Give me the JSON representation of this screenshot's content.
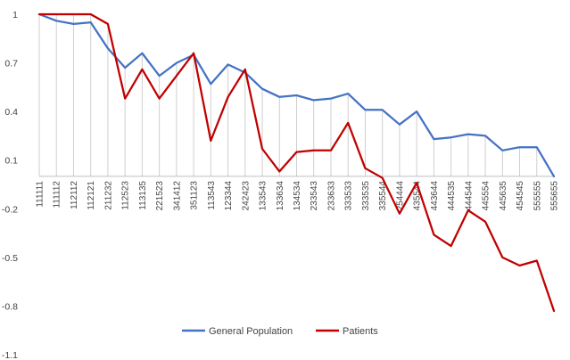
{
  "chart_data": {
    "type": "line",
    "categories": [
      "111111",
      "111112",
      "112112",
      "112121",
      "211232",
      "112523",
      "113135",
      "221523",
      "341412",
      "351123",
      "113543",
      "123344",
      "242423",
      "133543",
      "133634",
      "134534",
      "233543",
      "233633",
      "333533",
      "333535",
      "335544",
      "254444",
      "435544",
      "443644",
      "444535",
      "444544",
      "445554",
      "445635",
      "454545",
      "555555",
      "555655"
    ],
    "series": [
      {
        "name": "General Population",
        "color": "#4472C4",
        "values": [
          1.0,
          0.96,
          0.94,
          0.95,
          0.79,
          0.67,
          0.76,
          0.62,
          0.7,
          0.75,
          0.57,
          0.69,
          0.64,
          0.54,
          0.49,
          0.5,
          0.47,
          0.48,
          0.51,
          0.41,
          0.41,
          0.32,
          0.4,
          0.23,
          0.24,
          0.26,
          0.25,
          0.16,
          0.18,
          0.18,
          0.0
        ]
      },
      {
        "name": "Patients",
        "color": "#C00000",
        "values": [
          1.0,
          1.0,
          1.0,
          1.0,
          0.94,
          0.48,
          0.66,
          0.48,
          0.62,
          0.76,
          0.22,
          0.49,
          0.66,
          0.17,
          0.03,
          0.15,
          0.16,
          0.16,
          0.33,
          0.05,
          -0.01,
          -0.23,
          -0.04,
          -0.36,
          -0.43,
          -0.21,
          -0.28,
          -0.5,
          -0.55,
          -0.52,
          -0.83
        ]
      }
    ],
    "yticks": [
      1,
      0.7,
      0.4,
      0.1,
      -0.2,
      -0.5,
      -0.8,
      -1.1
    ],
    "ylim": [
      -1.1,
      1.0
    ],
    "grid": false,
    "legend_position": "bottom"
  }
}
